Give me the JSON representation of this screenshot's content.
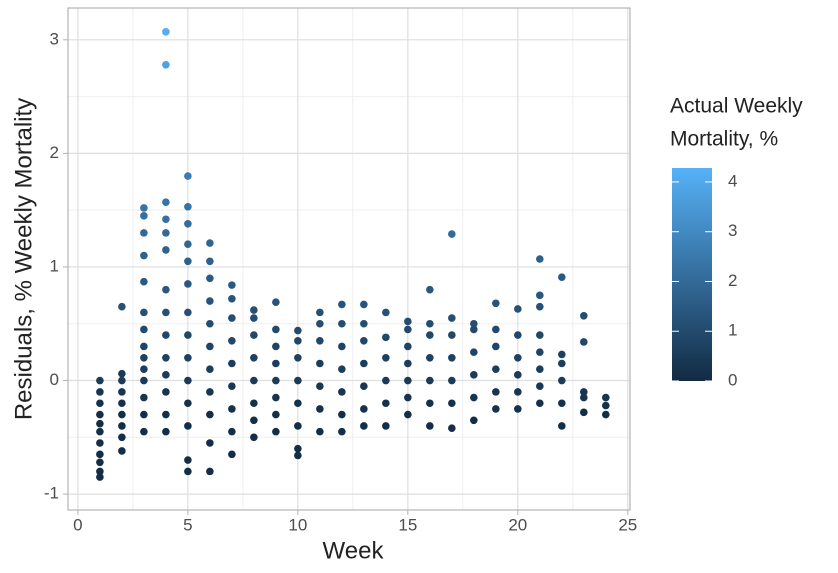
{
  "chart_data": {
    "type": "scatter",
    "xlabel": "Week",
    "ylabel": "Residuals, % Weekly Mortality",
    "legend_title": [
      "Actual Weekly",
      "Mortality, %"
    ],
    "xlim": [
      -0.45,
      25.1
    ],
    "ylim": [
      -1.14,
      3.28
    ],
    "xticks": [
      0,
      5,
      10,
      15,
      20,
      25
    ],
    "yticks": [
      -1,
      0,
      1,
      2,
      3
    ],
    "grid": true,
    "minor_grid": true,
    "color_scale": {
      "low": "#132B43",
      "high": "#56B1F7",
      "lim": [
        0,
        4.28
      ],
      "ticks": [
        0,
        1,
        2,
        3,
        4
      ]
    },
    "series": [
      {
        "x": [
          1,
          1,
          1,
          1,
          1,
          1,
          1,
          1,
          1,
          1,
          1,
          2,
          2,
          2,
          2,
          2,
          2,
          2,
          2,
          2,
          3,
          3,
          3,
          3,
          3,
          3,
          3,
          3,
          3,
          3,
          3,
          3,
          3,
          3,
          4,
          4,
          4,
          4,
          4,
          4,
          4,
          4,
          4,
          4,
          4,
          4,
          4,
          4,
          5,
          5,
          5,
          5,
          5,
          5,
          5,
          5,
          5,
          5,
          5,
          5,
          5,
          5,
          6,
          6,
          6,
          6,
          6,
          6,
          6,
          6,
          6,
          6,
          6,
          7,
          7,
          7,
          7,
          7,
          7,
          7,
          7,
          7,
          8,
          8,
          8,
          8,
          8,
          8,
          8,
          8,
          9,
          9,
          9,
          9,
          9,
          9,
          9,
          9,
          10,
          10,
          10,
          10,
          10,
          10,
          10,
          10,
          11,
          11,
          11,
          11,
          11,
          11,
          11,
          12,
          12,
          12,
          12,
          12,
          12,
          12,
          13,
          13,
          13,
          13,
          13,
          13,
          13,
          14,
          14,
          14,
          14,
          14,
          14,
          15,
          15,
          15,
          15,
          15,
          15,
          15,
          16,
          16,
          16,
          16,
          16,
          16,
          16,
          17,
          17,
          17,
          17,
          17,
          17,
          17,
          18,
          18,
          18,
          18,
          18,
          18,
          19,
          19,
          19,
          19,
          19,
          19,
          20,
          20,
          20,
          20,
          20,
          20,
          21,
          21,
          21,
          21,
          21,
          21,
          21,
          21,
          22,
          22,
          22,
          22,
          22,
          22,
          23,
          23,
          23,
          23,
          23,
          24,
          24,
          24
        ],
        "values": [
          -0.85,
          -0.8,
          -0.72,
          -0.65,
          -0.55,
          -0.45,
          -0.38,
          -0.3,
          -0.2,
          -0.1,
          0,
          -0.62,
          -0.5,
          -0.4,
          -0.3,
          -0.2,
          -0.1,
          0,
          0.06,
          0.65,
          -0.45,
          -0.3,
          -0.15,
          0,
          0.1,
          0.2,
          0.3,
          0.45,
          0.6,
          0.87,
          1.1,
          1.3,
          1.45,
          1.52,
          -0.45,
          -0.3,
          -0.1,
          0.05,
          0.2,
          0.4,
          0.6,
          0.8,
          1.15,
          1.3,
          1.42,
          1.57,
          2.78,
          3.07,
          -0.8,
          -0.7,
          -0.4,
          -0.2,
          0,
          0.2,
          0.4,
          0.6,
          0.85,
          1.05,
          1.2,
          1.38,
          1.53,
          1.8,
          -0.8,
          -0.55,
          -0.3,
          -0.1,
          0.1,
          0.3,
          0.5,
          0.7,
          0.9,
          1.05,
          1.21,
          -0.65,
          -0.45,
          -0.25,
          -0.05,
          0.15,
          0.35,
          0.55,
          0.72,
          0.84,
          -0.5,
          -0.35,
          -0.2,
          0,
          0.2,
          0.4,
          0.55,
          0.62,
          -0.45,
          -0.3,
          -0.15,
          0,
          0.15,
          0.3,
          0.45,
          0.69,
          -0.66,
          -0.6,
          -0.4,
          -0.2,
          0,
          0.2,
          0.35,
          0.44,
          -0.45,
          -0.25,
          -0.05,
          0.15,
          0.35,
          0.5,
          0.6,
          -0.45,
          -0.3,
          -0.1,
          0.1,
          0.3,
          0.5,
          0.67,
          -0.4,
          -0.25,
          -0.05,
          0.15,
          0.35,
          0.5,
          0.67,
          -0.4,
          -0.2,
          0,
          0.2,
          0.38,
          0.6,
          -0.3,
          -0.15,
          0,
          0.15,
          0.3,
          0.45,
          0.52,
          -0.4,
          -0.2,
          0,
          0.2,
          0.4,
          0.5,
          0.8,
          -0.42,
          -0.2,
          0,
          0.2,
          0.4,
          0.55,
          1.29,
          -0.35,
          -0.15,
          0.05,
          0.25,
          0.45,
          0.5,
          -0.25,
          -0.1,
          0.1,
          0.3,
          0.45,
          0.68,
          -0.25,
          -0.1,
          0.05,
          0.2,
          0.4,
          0.63,
          -0.2,
          -0.05,
          0.1,
          0.25,
          0.4,
          0.65,
          0.75,
          1.07,
          -0.4,
          -0.2,
          0,
          0.15,
          0.23,
          0.91,
          -0.28,
          -0.15,
          -0.1,
          0.34,
          0.57,
          -0.3,
          -0.22,
          -0.15
        ],
        "color_values": [
          0.1,
          0.1,
          0.1,
          0.1,
          0.1,
          0.1,
          0.1,
          0.1,
          0.2,
          0.3,
          0.5,
          0.1,
          0.1,
          0.1,
          0.1,
          0.2,
          0.3,
          0.5,
          0.5,
          1.2,
          0.1,
          0.1,
          0.3,
          0.5,
          0.6,
          0.7,
          0.8,
          1.0,
          1.2,
          1.5,
          1.8,
          2.0,
          2.2,
          2.3,
          0.1,
          0.1,
          0.3,
          0.5,
          0.7,
          0.9,
          1.2,
          1.4,
          1.8,
          2.0,
          2.2,
          2.3,
          3.8,
          4.2,
          0.1,
          0.1,
          0.1,
          0.2,
          0.5,
          0.7,
          0.9,
          1.2,
          1.5,
          1.7,
          1.9,
          2.1,
          2.3,
          2.6,
          0.1,
          0.1,
          0.1,
          0.3,
          0.6,
          0.8,
          1.1,
          1.3,
          1.5,
          1.7,
          1.9,
          0.1,
          0.1,
          0.2,
          0.4,
          0.6,
          0.9,
          1.1,
          1.3,
          1.5,
          0.1,
          0.1,
          0.2,
          0.5,
          0.7,
          0.9,
          1.1,
          1.2,
          0.1,
          0.1,
          0.3,
          0.5,
          0.6,
          0.8,
          1.0,
          1.3,
          0.1,
          0.1,
          0.1,
          0.2,
          0.5,
          0.7,
          0.9,
          1.0,
          0.1,
          0.2,
          0.4,
          0.6,
          0.9,
          1.1,
          1.2,
          0.1,
          0.1,
          0.3,
          0.6,
          0.8,
          1.1,
          1.3,
          0.1,
          0.2,
          0.4,
          0.6,
          0.9,
          1.1,
          1.3,
          0.1,
          0.2,
          0.5,
          0.7,
          0.9,
          1.2,
          0.1,
          0.3,
          0.5,
          0.6,
          0.8,
          1.0,
          1.1,
          0.1,
          0.2,
          0.5,
          0.7,
          0.9,
          1.1,
          1.4,
          0.1,
          0.2,
          0.5,
          0.7,
          0.9,
          1.1,
          2.0,
          0.1,
          0.3,
          0.5,
          0.8,
          1.0,
          1.1,
          0.2,
          0.3,
          0.6,
          0.8,
          1.0,
          1.3,
          0.2,
          0.3,
          0.5,
          0.7,
          0.9,
          1.2,
          0.2,
          0.4,
          0.6,
          0.8,
          0.9,
          1.2,
          1.4,
          1.7,
          0.1,
          0.2,
          0.5,
          0.6,
          0.7,
          1.5,
          0.1,
          0.3,
          0.3,
          0.9,
          1.1,
          0.1,
          0.2,
          0.3
        ]
      }
    ]
  }
}
